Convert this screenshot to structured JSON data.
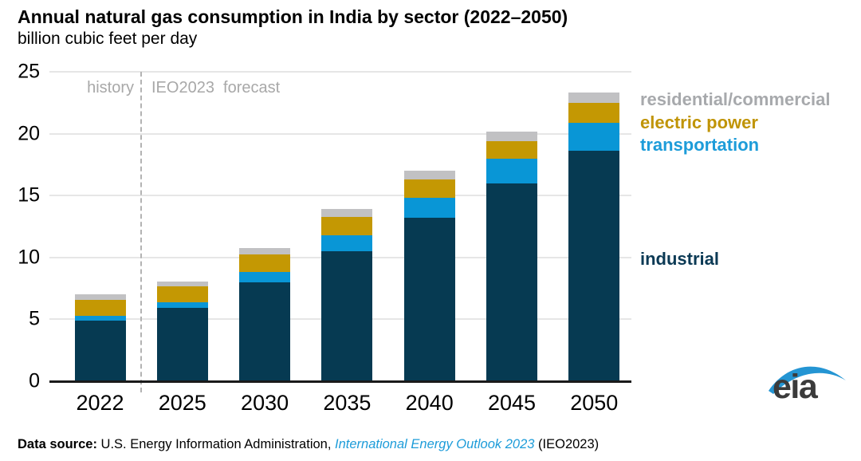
{
  "title": "Annual natural gas consumption in India by sector (2022–2050)",
  "subtitle": "billion cubic feet per day",
  "annotations": {
    "history": "history",
    "forecast": "IEO2023  forecast"
  },
  "legend": [
    {
      "label": "residential/commercial",
      "color": "#a7a9ac"
    },
    {
      "label": "electric power",
      "color": "#c09405"
    },
    {
      "label": "transportation",
      "color": "#1d9cd9"
    },
    {
      "label": "industrial",
      "color": "#0c3a55"
    }
  ],
  "footer": {
    "prefix": "Data source:",
    "body": " U.S. Energy Information Administration, ",
    "link": "International Energy Outlook 2023",
    "suffix": " (IEO2023)"
  },
  "logo": {
    "text": "eia",
    "swoosh_color": "#2495d3"
  },
  "colors": {
    "industrial": "#063a52",
    "transportation": "#0996d6",
    "electric_power": "#c49803",
    "residential_commercial": "#c1c1c3",
    "gridline": "#e6e6e6",
    "dashed_line": "#b3b3b3",
    "annotation_gray": "#a8a8a8",
    "axis": "#1a1a1a"
  },
  "chart_data": {
    "type": "bar",
    "stacked": true,
    "title": "Annual natural gas consumption in India by sector (2022–2050)",
    "ylabel": "billion cubic feet per day",
    "xlabel": "",
    "categories": [
      "2022",
      "2025",
      "2030",
      "2035",
      "2040",
      "2045",
      "2050"
    ],
    "series": [
      {
        "name": "industrial",
        "color": "#063a52",
        "values": [
          4.9,
          5.9,
          8.0,
          10.5,
          13.2,
          16.0,
          18.6
        ]
      },
      {
        "name": "transportation",
        "color": "#0996d6",
        "values": [
          0.4,
          0.5,
          0.85,
          1.3,
          1.6,
          1.95,
          2.3
        ]
      },
      {
        "name": "electric power",
        "color": "#c49803",
        "values": [
          1.3,
          1.25,
          1.4,
          1.5,
          1.5,
          1.45,
          1.6
        ]
      },
      {
        "name": "residential/commercial",
        "color": "#c1c1c3",
        "values": [
          0.4,
          0.4,
          0.5,
          0.6,
          0.7,
          0.8,
          0.8
        ]
      }
    ],
    "totals": [
      7.0,
      8.05,
      10.75,
      13.9,
      17.0,
      20.2,
      23.3
    ],
    "ylim": [
      0,
      25
    ],
    "yticks": [
      0,
      5,
      10,
      15,
      20,
      25
    ],
    "grid": true,
    "legend_position": "right",
    "history_forecast_boundary_after": "2022"
  }
}
